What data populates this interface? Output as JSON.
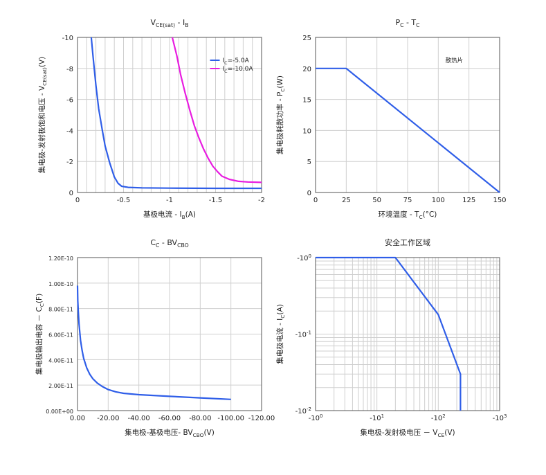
{
  "chart_data": [
    {
      "type": "line",
      "title": "V<sub>CE(sat)</sub> - I<sub>B</sub>",
      "xlabel": "基极电流 - I<sub>B</sub>(A)",
      "ylabel": "集电极-发射极饱和电压 - V<sub>CE(sat)</sub>(V)",
      "x_ticks": [
        "0",
        "-0.5",
        "-1",
        "-1.5",
        "-2"
      ],
      "x_tick_values": [
        0,
        -0.5,
        -1,
        -1.5,
        -2
      ],
      "y_ticks": [
        "0",
        "-2",
        "-4",
        "-6",
        "-8",
        "-10"
      ],
      "y_tick_values": [
        0,
        -2,
        -4,
        -6,
        -8,
        -10
      ],
      "xlim": [
        0,
        -2
      ],
      "ylim": [
        0,
        -10
      ],
      "x_grid_step": 0.1,
      "legend": "top-right",
      "series": [
        {
          "name": "I<sub>C</sub>=-5.0A",
          "color": "#2f5ee8",
          "x": [
            -0.15,
            -0.17,
            -0.2,
            -0.23,
            -0.27,
            -0.3,
            -0.35,
            -0.4,
            -0.44,
            -0.48,
            -0.55,
            -0.7,
            -1.0,
            -1.5,
            -2.0
          ],
          "y": [
            -10,
            -8.7,
            -6.9,
            -5.4,
            -4.0,
            -3.0,
            -1.9,
            -1.0,
            -0.6,
            -0.4,
            -0.33,
            -0.3,
            -0.28,
            -0.27,
            -0.27
          ]
        },
        {
          "name": "I<sub>C</sub>=-10.0A",
          "color": "#e81ce0",
          "x": [
            -1.03,
            -1.08,
            -1.12,
            -1.17,
            -1.22,
            -1.27,
            -1.32,
            -1.37,
            -1.42,
            -1.47,
            -1.52,
            -1.57,
            -1.65,
            -1.75,
            -1.85,
            -2.0
          ],
          "y": [
            -10,
            -8.8,
            -7.6,
            -6.4,
            -5.3,
            -4.3,
            -3.5,
            -2.8,
            -2.2,
            -1.7,
            -1.35,
            -1.05,
            -0.85,
            -0.72,
            -0.68,
            -0.65
          ]
        }
      ]
    },
    {
      "type": "line",
      "title": "P<sub>C</sub> - T<sub>C</sub>",
      "xlabel": "环境温度 - T<sub>C</sub>(°C)",
      "ylabel": "集电极耗散功率 - P<sub>C</sub>(W)",
      "x_ticks": [
        "0",
        "25",
        "50",
        "75",
        "100",
        "125",
        "150"
      ],
      "x_tick_values": [
        0,
        25,
        50,
        75,
        100,
        125,
        150
      ],
      "y_ticks": [
        "0",
        "5",
        "10",
        "15",
        "20",
        "25"
      ],
      "y_tick_values": [
        0,
        5,
        10,
        15,
        20,
        25
      ],
      "xlim": [
        0,
        150
      ],
      "ylim": [
        0,
        25
      ],
      "annotations": [
        {
          "text": "散热片",
          "x": 113,
          "y": 21
        }
      ],
      "series": [
        {
          "color": "#2f5ee8",
          "x": [
            0,
            25,
            150
          ],
          "y": [
            20,
            20,
            0
          ]
        }
      ]
    },
    {
      "type": "line",
      "title": "C<sub>C</sub> - BV<sub>CBO</sub>",
      "xlabel": "集电极-基极电压- BV<sub>CBO</sub>(V)",
      "ylabel": "集电极输出电容 － C<sub>C</sub>(F)",
      "x_ticks": [
        "0.00",
        "-20.00",
        "-40.00",
        "-60.00",
        "-80.00",
        "-100.00",
        "-120.00"
      ],
      "x_tick_values": [
        0,
        -20,
        -40,
        -60,
        -80,
        -100,
        -120
      ],
      "y_ticks": [
        "0.00E+00",
        "2.00E-11",
        "4.00E-11",
        "6.00E-11",
        "8.00E-11",
        "1.00E-10",
        "1.20E-10"
      ],
      "y_tick_values": [
        0,
        2e-11,
        4e-11,
        6e-11,
        8e-11,
        1e-10,
        1.2e-10
      ],
      "xlim": [
        0,
        -120
      ],
      "ylim": [
        0,
        1.2e-10
      ],
      "series": [
        {
          "color": "#2f5ee8",
          "x": [
            0,
            -0.2,
            -0.5,
            -1,
            -2,
            -3,
            -4,
            -6,
            -8,
            -10,
            -13,
            -16,
            -20,
            -25,
            -30,
            -40,
            -60,
            -80,
            -100
          ],
          "y": [
            9.8e-11,
            8.6e-11,
            7.8e-11,
            6.8e-11,
            5.5e-11,
            4.7e-11,
            4.1e-11,
            3.35e-11,
            2.85e-11,
            2.5e-11,
            2.15e-11,
            1.9e-11,
            1.65e-11,
            1.47e-11,
            1.36e-11,
            1.25e-11,
            1.12e-11,
            1e-11,
            8.8e-12
          ]
        }
      ]
    },
    {
      "type": "line",
      "title": "安全工作区域",
      "xlabel": "集电极-发射极电压 － V<sub>CE</sub>(V)",
      "ylabel": "集电极电流 - I<sub>C</sub>(A)",
      "x_ticks": [
        "-10<sup>0</sup>",
        "-10<sup>1</sup>",
        "-10<sup>2</sup>",
        "-10<sup>3</sup>"
      ],
      "x_tick_values": [
        1,
        10,
        100,
        1000
      ],
      "y_ticks": [
        "-10<sup>-2</sup>",
        "-10<sup>-1</sup>",
        "-10<sup>0</sup>"
      ],
      "y_tick_values": [
        0.01,
        0.1,
        1
      ],
      "x_scale": "log",
      "y_scale": "log",
      "xlim": [
        1,
        1000
      ],
      "ylim": [
        0.01,
        1
      ],
      "series": [
        {
          "color": "#2f5ee8",
          "x": [
            1,
            20,
            100,
            230,
            230
          ],
          "y": [
            1,
            1,
            0.18,
            0.03,
            0.01
          ]
        }
      ]
    }
  ]
}
